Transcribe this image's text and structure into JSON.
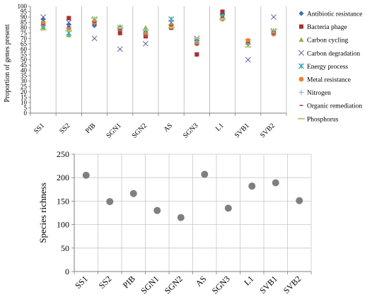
{
  "chart_data": [
    {
      "type": "scatter",
      "title": "",
      "xlabel": "",
      "ylabel": "Proportion of genes present",
      "ylim": [
        0,
        100
      ],
      "yticks": [
        0,
        5,
        10,
        15,
        20,
        25,
        30,
        35,
        40,
        45,
        50,
        55,
        60,
        65,
        70,
        75,
        80,
        85,
        90,
        95,
        100
      ],
      "categories": [
        "SS1",
        "SS2",
        "PIB",
        "SGN1",
        "SGN2",
        "AS",
        "SGN3",
        "L1",
        "SVB1",
        "SVB2"
      ],
      "grid": "vertical",
      "legend_position": "right",
      "series": [
        {
          "name": "Antibiotic resistance",
          "marker": "diamond",
          "color": "#3f6fb5",
          "values": [
            88,
            83,
            82,
            78,
            76,
            80,
            68,
            93,
            65,
            76
          ]
        },
        {
          "name": "Bacteria phage",
          "marker": "square",
          "color": "#a83232",
          "values": [
            84,
            89,
            84,
            75,
            72,
            80,
            55,
            95,
            66,
            75
          ]
        },
        {
          "name": "Carbon cycling",
          "marker": "triangle",
          "color": "#8fb04a",
          "values": [
            81,
            73,
            85,
            81,
            80,
            81,
            68,
            91,
            66,
            76
          ]
        },
        {
          "name": "Carbon degradation",
          "marker": "x",
          "color": "#6a5a8e",
          "values": [
            90,
            85,
            70,
            60,
            65,
            85,
            70,
            90,
            50,
            90
          ]
        },
        {
          "name": "Energy process",
          "marker": "star",
          "color": "#33a8b8",
          "values": [
            80,
            75,
            88,
            80,
            76,
            88,
            68,
            90,
            67,
            77
          ]
        },
        {
          "name": "Metal resistance",
          "marker": "circle",
          "color": "#e8822e",
          "values": [
            84,
            79,
            86,
            79,
            74,
            82,
            65,
            88,
            68,
            74
          ]
        },
        {
          "name": "Nitrogen",
          "marker": "plus",
          "color": "#8aa0c8",
          "values": [
            82,
            80,
            84,
            79,
            75,
            82,
            66,
            89,
            65,
            75
          ]
        },
        {
          "name": "Organic remediation",
          "marker": "dash",
          "color": "#b04040",
          "values": [
            83,
            81,
            85,
            78,
            73,
            82,
            64,
            90,
            66,
            74
          ]
        },
        {
          "name": "Phosphorus",
          "marker": "line",
          "color": "#b8cc63",
          "values": [
            78,
            77,
            89,
            80,
            78,
            80,
            70,
            88,
            62,
            78
          ]
        }
      ]
    },
    {
      "type": "scatter",
      "title": "",
      "xlabel": "",
      "ylabel": "Species richness",
      "ylim": [
        0,
        250
      ],
      "yticks": [
        0,
        50,
        100,
        150,
        200,
        250
      ],
      "categories": [
        "SS1",
        "SS2",
        "PIB",
        "SGN1",
        "SGN2",
        "AS",
        "SGN3",
        "L1",
        "SVB1",
        "SVB2"
      ],
      "grid": "both",
      "marker_color": "#7f7f7f",
      "values": [
        205,
        149,
        166,
        130,
        115,
        207,
        135,
        182,
        189,
        151
      ]
    }
  ]
}
